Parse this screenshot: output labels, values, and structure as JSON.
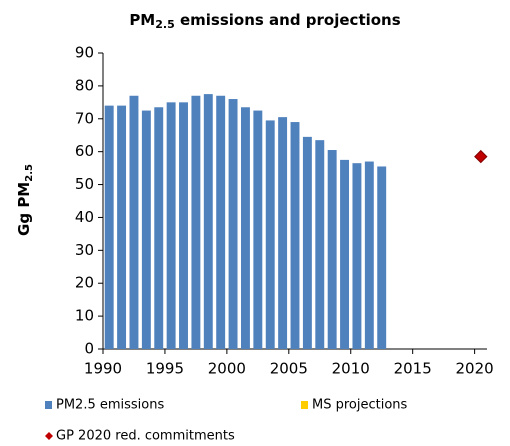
{
  "chart_data": {
    "type": "bar",
    "title": {
      "main": "PM",
      "sub": "2.5",
      "rest": " emissions and projections"
    },
    "y_label": {
      "main": "Gg PM",
      "sub": "2.5"
    },
    "xlim": [
      1990,
      2021
    ],
    "xticks": [
      1990,
      1995,
      2000,
      2005,
      2010,
      2015,
      2020
    ],
    "ylim": [
      0,
      90
    ],
    "yticks": [
      0,
      10,
      20,
      30,
      40,
      50,
      60,
      70,
      80,
      90
    ],
    "grid": false,
    "series": [
      {
        "name": "PM2.5 emissions",
        "color": "#4f81bd",
        "kind": "bar",
        "x": [
          1990,
          1991,
          1992,
          1993,
          1994,
          1995,
          1996,
          1997,
          1998,
          1999,
          2000,
          2001,
          2002,
          2003,
          2004,
          2005,
          2006,
          2007,
          2008,
          2009,
          2010,
          2011,
          2012
        ],
        "values": [
          74,
          74,
          77,
          72.5,
          73.5,
          75,
          75,
          77,
          77.5,
          77,
          76,
          73.5,
          72.5,
          69.5,
          70.5,
          69,
          64.5,
          63.5,
          60.5,
          57.5,
          56.5,
          57,
          55.5
        ]
      },
      {
        "name": "MS projections",
        "color": "#ffcc00",
        "kind": "bar",
        "x": [],
        "values": []
      },
      {
        "name": "GP 2020 red. commitments",
        "color": "#c00000",
        "kind": "diamond",
        "x": [
          2020
        ],
        "values": [
          58.5
        ]
      }
    ]
  }
}
